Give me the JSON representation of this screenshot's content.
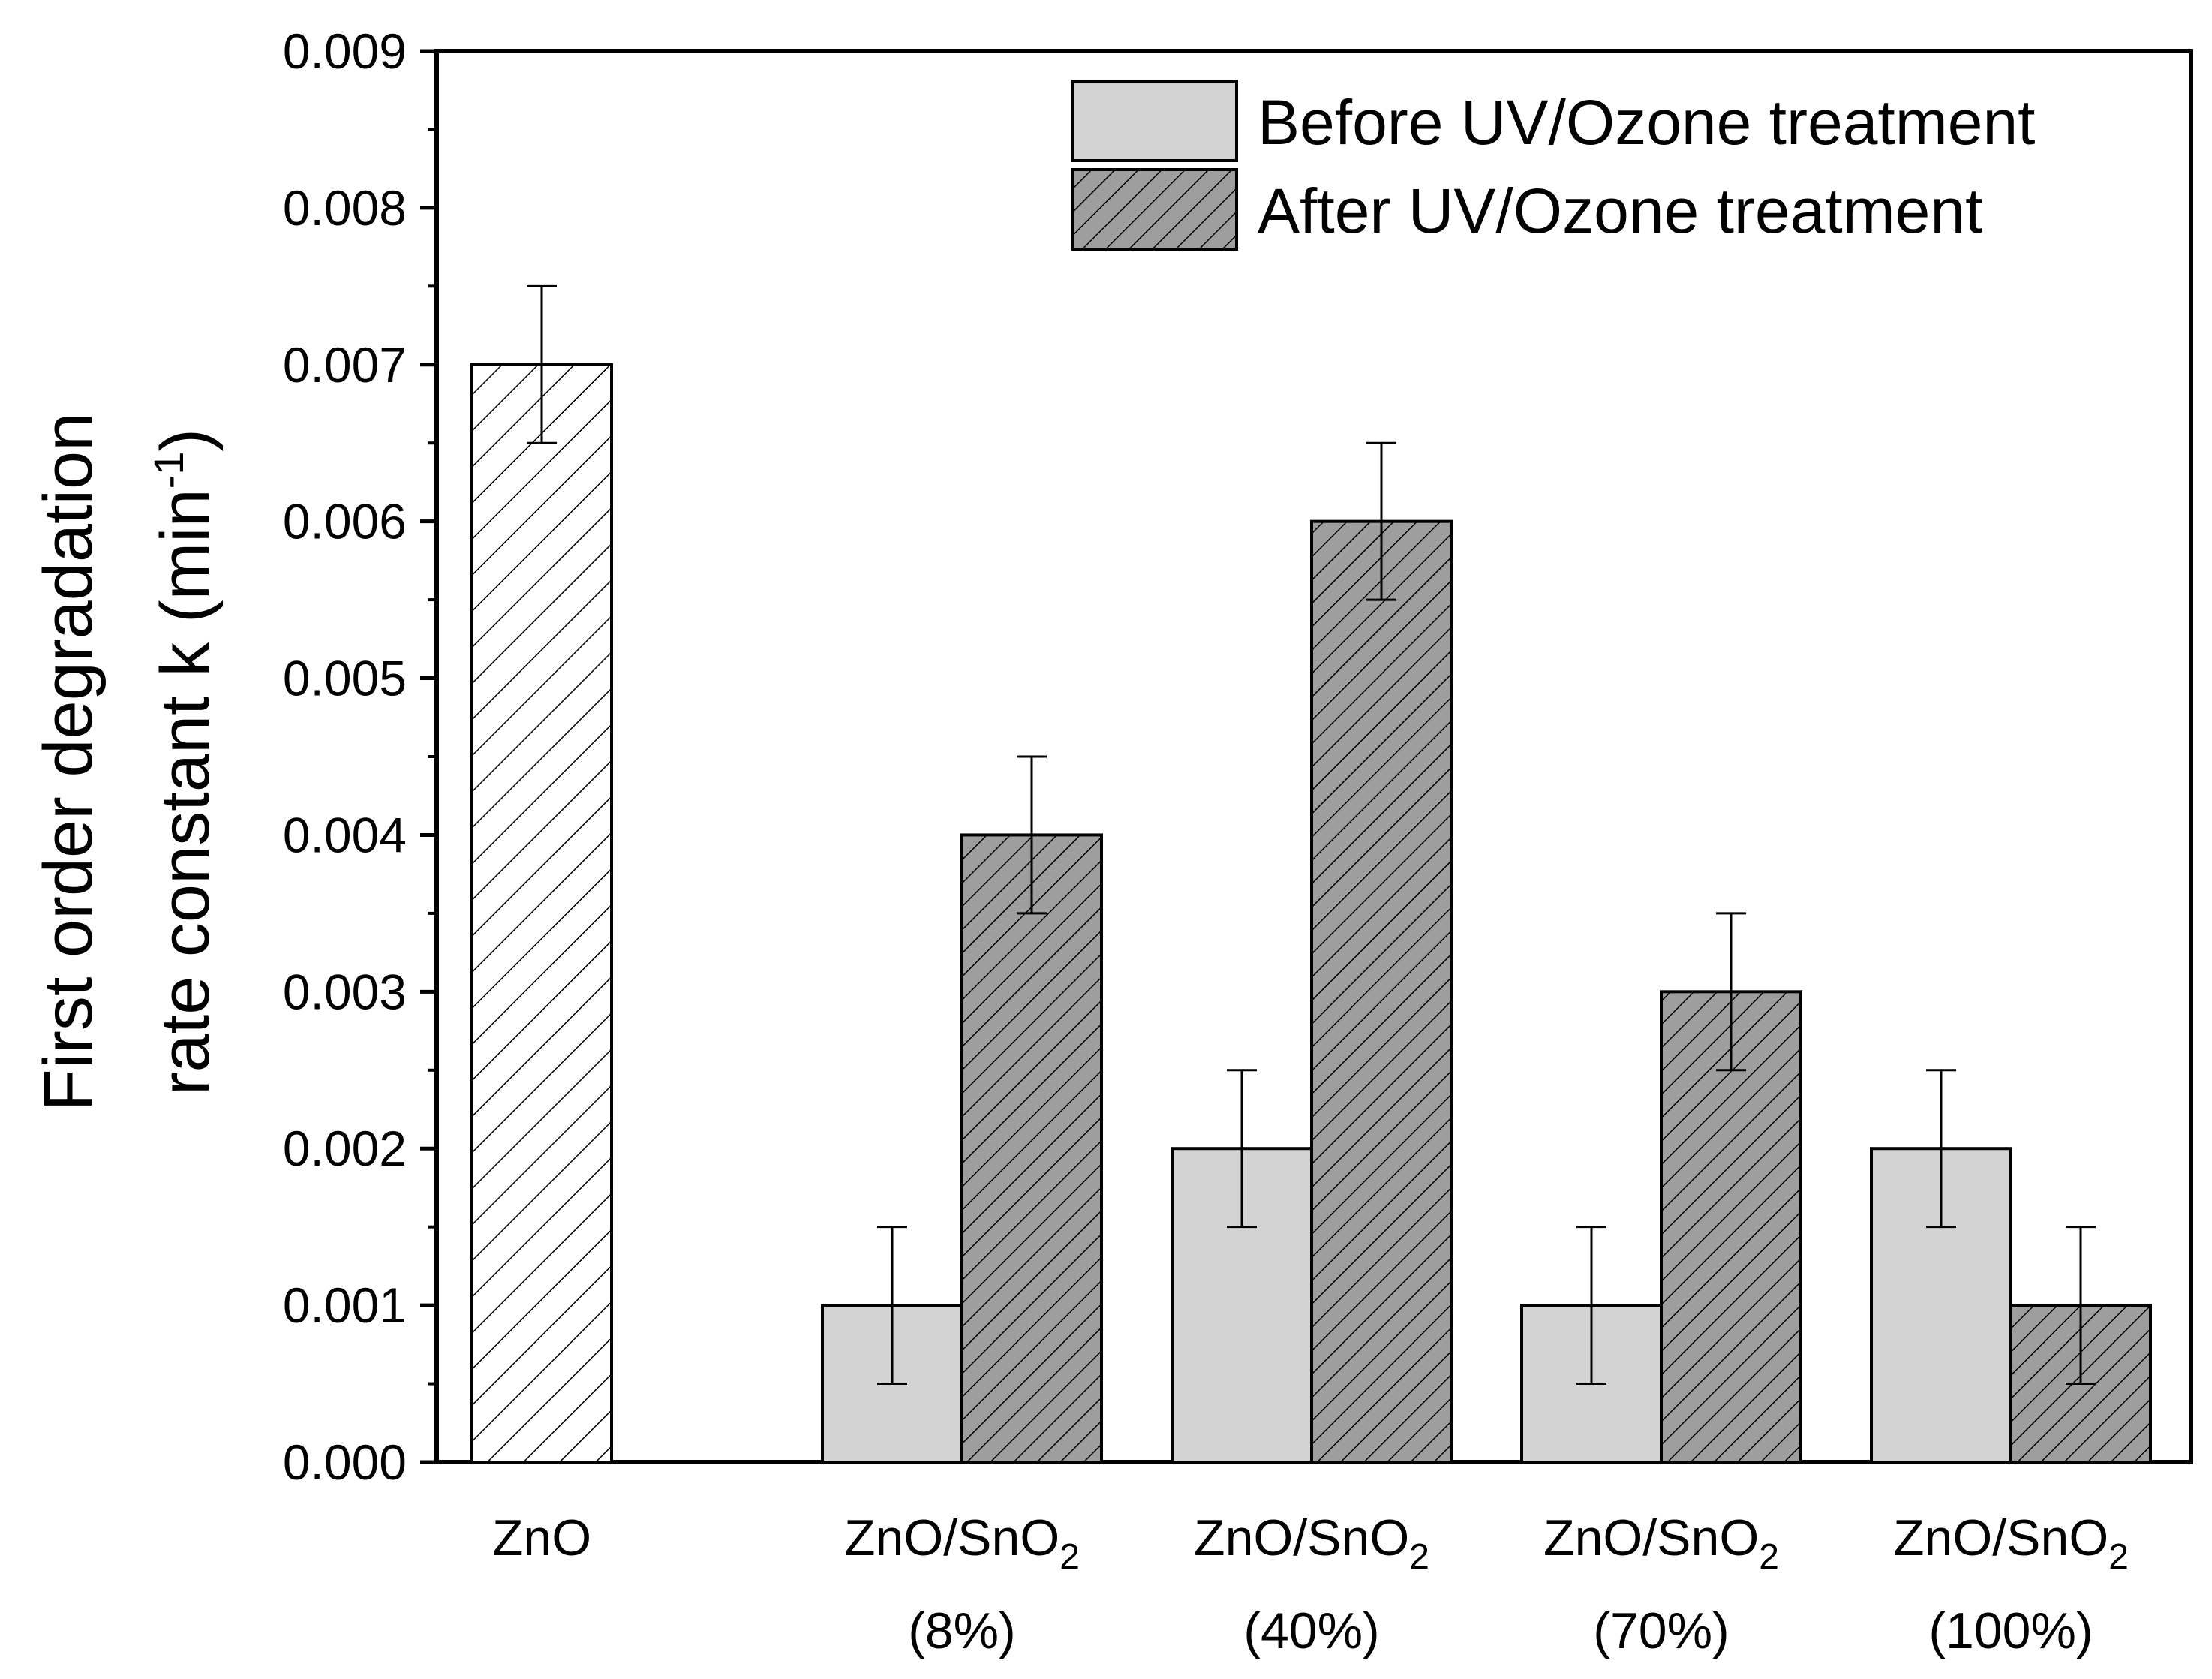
{
  "chart_data": {
    "type": "bar",
    "title": "",
    "xlabel": "",
    "ylabel": {
      "line1": "First order degradation",
      "line2_main": "rate constant k (min",
      "line2_sup": "-1",
      "line2_end": ")"
    },
    "ylim": [
      0,
      0.009
    ],
    "yticks": [
      "0.000",
      "0.001",
      "0.002",
      "0.003",
      "0.004",
      "0.005",
      "0.006",
      "0.007",
      "0.008",
      "0.009"
    ],
    "ytick_values": [
      0,
      0.001,
      0.002,
      0.003,
      0.004,
      0.005,
      0.006,
      0.007,
      0.008,
      0.009
    ],
    "categories": [
      {
        "line1": "ZnO",
        "sub": "",
        "line2": ""
      },
      {
        "line1": "ZnO/SnO",
        "sub": "2",
        "line2": "(8%)"
      },
      {
        "line1": "ZnO/SnO",
        "sub": "2",
        "line2": "(40%)"
      },
      {
        "line1": "ZnO/SnO",
        "sub": "2",
        "line2": "(70%)"
      },
      {
        "line1": "ZnO/SnO",
        "sub": "2",
        "line2": "(100%)"
      }
    ],
    "reference": {
      "category": "ZnO",
      "value": 0.007,
      "error": 0.0005,
      "style": "white-hatched"
    },
    "series": [
      {
        "name": "Before UV/Ozone treatment",
        "values": [
          null,
          0.001,
          0.002,
          0.001,
          0.002
        ],
        "errors": [
          null,
          0.0005,
          0.0005,
          0.0005,
          0.0005
        ],
        "color": "#d3d3d3",
        "pattern": "solid"
      },
      {
        "name": "After UV/Ozone treatment",
        "values": [
          null,
          0.004,
          0.006,
          0.003,
          0.001
        ],
        "errors": [
          null,
          0.0005,
          0.0005,
          0.0005,
          0.0005
        ],
        "color": "#9e9e9e",
        "pattern": "hatched"
      }
    ],
    "legend_position": "top-right",
    "grid": false
  }
}
